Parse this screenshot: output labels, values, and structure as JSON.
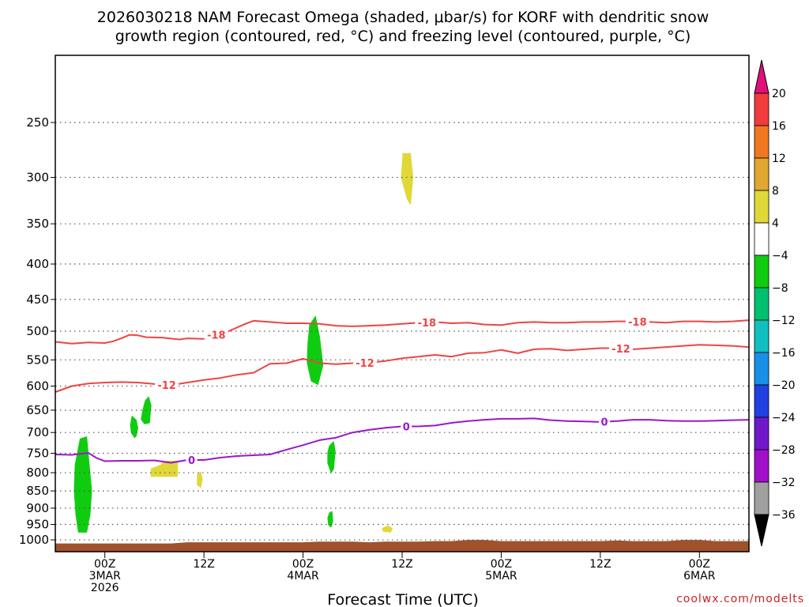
{
  "chart_data": {
    "type": "area",
    "title_lines": [
      "2026030218 NAM Forecast Omega (shaded, μbar/s) for KORF with dendritic snow",
      "growth region (contoured, red, °C) and freezing level (contoured, purple, °C)"
    ],
    "xlabel": "Forecast Time (UTC)",
    "credit": "coolwx.com/modelts",
    "x_range_hours": [
      -6,
      78
    ],
    "x_ticks": [
      {
        "hour": 0,
        "lines": [
          "00Z",
          "3MAR",
          "2026"
        ]
      },
      {
        "hour": 12,
        "lines": [
          "12Z"
        ]
      },
      {
        "hour": 24,
        "lines": [
          "00Z",
          "4MAR"
        ]
      },
      {
        "hour": 36,
        "lines": [
          "12Z"
        ]
      },
      {
        "hour": 48,
        "lines": [
          "00Z",
          "5MAR"
        ]
      },
      {
        "hour": 60,
        "lines": [
          "12Z"
        ]
      },
      {
        "hour": 72,
        "lines": [
          "00Z",
          "6MAR"
        ]
      }
    ],
    "y_ticks_hpa": [
      250,
      300,
      350,
      400,
      450,
      500,
      550,
      600,
      650,
      700,
      750,
      800,
      850,
      900,
      950,
      1000
    ],
    "y_range_hpa": [
      200,
      1040
    ],
    "colorbar": {
      "labels": [
        "20",
        "16",
        "12",
        "8",
        "4",
        "-4",
        "-8",
        "-12",
        "-16",
        "-20",
        "-24",
        "-28",
        "-32",
        "-36"
      ],
      "bands": [
        {
          "low": 16,
          "high": 20,
          "color": "#f03c3c"
        },
        {
          "low": 12,
          "high": 16,
          "color": "#f07820"
        },
        {
          "low": 8,
          "high": 12,
          "color": "#e0a830"
        },
        {
          "low": 4,
          "high": 8,
          "color": "#e0d838"
        },
        {
          "low": -4,
          "high": 4,
          "color": "#ffffff"
        },
        {
          "low": -8,
          "high": -4,
          "color": "#10cc10"
        },
        {
          "low": -12,
          "high": -8,
          "color": "#00c070"
        },
        {
          "low": -16,
          "high": -12,
          "color": "#10c0c0"
        },
        {
          "low": -20,
          "high": -16,
          "color": "#1890e8"
        },
        {
          "low": -24,
          "high": -20,
          "color": "#2040e0"
        },
        {
          "low": -28,
          "high": -24,
          "color": "#7018c8"
        },
        {
          "low": -32,
          "high": -28,
          "color": "#a010c8"
        },
        {
          "low": -36,
          "high": -32,
          "color": "#a0a0a0"
        }
      ],
      "over_color": "#e0107a",
      "under_color": "#000000"
    },
    "contours": [
      {
        "label": "-18",
        "color": "#ee4444",
        "label_hours": [
          13.5,
          39,
          64.5
        ],
        "points": [
          [
            -6,
            518
          ],
          [
            -4,
            521
          ],
          [
            -2,
            519
          ],
          [
            0,
            520
          ],
          [
            1,
            517
          ],
          [
            2,
            512
          ],
          [
            3,
            506
          ],
          [
            4,
            507
          ],
          [
            5,
            510
          ],
          [
            7,
            511
          ],
          [
            9,
            514
          ],
          [
            10,
            512
          ],
          [
            12,
            513
          ],
          [
            13,
            508
          ],
          [
            15,
            500
          ],
          [
            17,
            488
          ],
          [
            18,
            483
          ],
          [
            20,
            485
          ],
          [
            22,
            487
          ],
          [
            24,
            487
          ],
          [
            26,
            488
          ],
          [
            28,
            491
          ],
          [
            30,
            492
          ],
          [
            32,
            491
          ],
          [
            34,
            490
          ],
          [
            36,
            488
          ],
          [
            38,
            486
          ],
          [
            40,
            485
          ],
          [
            42,
            487
          ],
          [
            44,
            486
          ],
          [
            46,
            489
          ],
          [
            48,
            490
          ],
          [
            50,
            486
          ],
          [
            52,
            485
          ],
          [
            54,
            486
          ],
          [
            56,
            486
          ],
          [
            58,
            485
          ],
          [
            60,
            485
          ],
          [
            62,
            484
          ],
          [
            64,
            484
          ],
          [
            66,
            485
          ],
          [
            68,
            486
          ],
          [
            70,
            484
          ],
          [
            72,
            484
          ],
          [
            74,
            485
          ],
          [
            76,
            484
          ],
          [
            78,
            482
          ]
        ]
      },
      {
        "label": "-12",
        "color": "#ee4444",
        "label_hours": [
          7.5,
          31.5,
          62.5
        ],
        "points": [
          [
            -6,
            612
          ],
          [
            -4,
            600
          ],
          [
            -2,
            595
          ],
          [
            0,
            593
          ],
          [
            2,
            592
          ],
          [
            4,
            593
          ],
          [
            6,
            596
          ],
          [
            8,
            598
          ],
          [
            10,
            593
          ],
          [
            12,
            588
          ],
          [
            14,
            584
          ],
          [
            16,
            578
          ],
          [
            18,
            574
          ],
          [
            20,
            557
          ],
          [
            22,
            556
          ],
          [
            24,
            548
          ],
          [
            26,
            556
          ],
          [
            28,
            558
          ],
          [
            30,
            556
          ],
          [
            32,
            555
          ],
          [
            34,
            552
          ],
          [
            36,
            547
          ],
          [
            38,
            544
          ],
          [
            40,
            541
          ],
          [
            42,
            544
          ],
          [
            44,
            538
          ],
          [
            46,
            537
          ],
          [
            48,
            532
          ],
          [
            50,
            538
          ],
          [
            52,
            531
          ],
          [
            54,
            530
          ],
          [
            56,
            533
          ],
          [
            58,
            531
          ],
          [
            60,
            529
          ],
          [
            62,
            529
          ],
          [
            64,
            531
          ],
          [
            66,
            529
          ],
          [
            68,
            527
          ],
          [
            70,
            525
          ],
          [
            72,
            523
          ],
          [
            74,
            524
          ],
          [
            76,
            525
          ],
          [
            78,
            527
          ]
        ]
      },
      {
        "label": "0",
        "color": "#9a18c8",
        "label_hours": [
          10.5,
          36.5,
          60.5
        ],
        "points": [
          [
            -6,
            753
          ],
          [
            -4,
            754
          ],
          [
            -2,
            749
          ],
          [
            -1,
            762
          ],
          [
            0,
            770
          ],
          [
            2,
            769
          ],
          [
            4,
            769
          ],
          [
            6,
            768
          ],
          [
            8,
            774
          ],
          [
            10,
            767
          ],
          [
            12,
            767
          ],
          [
            14,
            761
          ],
          [
            16,
            757
          ],
          [
            18,
            755
          ],
          [
            20,
            753
          ],
          [
            22,
            741
          ],
          [
            24,
            730
          ],
          [
            26,
            718
          ],
          [
            28,
            712
          ],
          [
            30,
            700
          ],
          [
            32,
            694
          ],
          [
            34,
            689
          ],
          [
            36,
            686
          ],
          [
            38,
            686
          ],
          [
            40,
            684
          ],
          [
            42,
            678
          ],
          [
            44,
            674
          ],
          [
            46,
            671
          ],
          [
            48,
            669
          ],
          [
            50,
            669
          ],
          [
            52,
            668
          ],
          [
            54,
            672
          ],
          [
            56,
            674
          ],
          [
            58,
            675
          ],
          [
            60,
            676
          ],
          [
            62,
            674
          ],
          [
            64,
            671
          ],
          [
            66,
            671
          ],
          [
            68,
            673
          ],
          [
            70,
            674
          ],
          [
            72,
            674
          ],
          [
            74,
            673
          ],
          [
            76,
            672
          ],
          [
            78,
            671
          ]
        ]
      }
    ],
    "shaded_areas": [
      {
        "value": -6,
        "color": "#10cc10",
        "points": [
          [
            -3.0,
            715
          ],
          [
            -2.2,
            710
          ],
          [
            -2.0,
            755
          ],
          [
            -1.6,
            850
          ],
          [
            -1.8,
            920
          ],
          [
            -2.2,
            975
          ],
          [
            -3.2,
            975
          ],
          [
            -3.5,
            920
          ],
          [
            -3.7,
            850
          ],
          [
            -3.6,
            780
          ]
        ]
      },
      {
        "value": -6,
        "color": "#10cc10",
        "points": [
          [
            3.3,
            663
          ],
          [
            3.8,
            672
          ],
          [
            4.0,
            690
          ],
          [
            3.8,
            708
          ],
          [
            3.6,
            712
          ],
          [
            3.2,
            700
          ],
          [
            3.1,
            683
          ]
        ]
      },
      {
        "value": -6,
        "color": "#10cc10",
        "points": [
          [
            4.9,
            630
          ],
          [
            5.3,
            622
          ],
          [
            5.6,
            640
          ],
          [
            5.4,
            678
          ],
          [
            4.8,
            680
          ],
          [
            4.4,
            670
          ],
          [
            4.6,
            650
          ]
        ]
      },
      {
        "value": -6,
        "color": "#10cc10",
        "points": [
          [
            24.8,
            490
          ],
          [
            25.5,
            476
          ],
          [
            26.0,
            510
          ],
          [
            26.4,
            560
          ],
          [
            25.8,
            597
          ],
          [
            25.0,
            590
          ],
          [
            24.5,
            555
          ],
          [
            24.6,
            520
          ]
        ]
      },
      {
        "value": -6,
        "color": "#10cc10",
        "points": [
          [
            27.2,
            732
          ],
          [
            27.7,
            722
          ],
          [
            27.9,
            745
          ],
          [
            27.7,
            790
          ],
          [
            27.4,
            800
          ],
          [
            27.0,
            775
          ],
          [
            27.0,
            748
          ]
        ]
      },
      {
        "value": -6,
        "color": "#10cc10",
        "points": [
          [
            27.2,
            915
          ],
          [
            27.5,
            910
          ],
          [
            27.6,
            940
          ],
          [
            27.4,
            958
          ],
          [
            27.1,
            952
          ],
          [
            27.0,
            930
          ]
        ]
      },
      {
        "value": 6,
        "color": "#e0d838",
        "points": [
          [
            36.1,
            277
          ],
          [
            37.0,
            277
          ],
          [
            37.3,
            300
          ],
          [
            37.0,
            328
          ],
          [
            36.6,
            322
          ],
          [
            35.9,
            300
          ]
        ]
      },
      {
        "value": 6,
        "color": "#e0d838",
        "points": [
          [
            5.6,
            790
          ],
          [
            6.8,
            780
          ],
          [
            7.2,
            770
          ],
          [
            8.8,
            770
          ],
          [
            8.8,
            810
          ],
          [
            5.6,
            810
          ]
        ]
      },
      {
        "value": 6,
        "color": "#e0d838",
        "points": [
          [
            11.2,
            805
          ],
          [
            11.6,
            798
          ],
          [
            11.8,
            818
          ],
          [
            11.6,
            840
          ],
          [
            11.2,
            833
          ]
        ]
      },
      {
        "value": 6,
        "color": "#e0d838",
        "points": [
          [
            33.6,
            963
          ],
          [
            34.3,
            955
          ],
          [
            34.8,
            963
          ],
          [
            34.6,
            975
          ],
          [
            33.7,
            972
          ]
        ]
      }
    ],
    "terrain": {
      "color": "#a0522d",
      "points": [
        [
          -6,
          1012
        ],
        [
          -3,
          1012
        ],
        [
          0,
          1012
        ],
        [
          3,
          1012
        ],
        [
          6,
          1012
        ],
        [
          8,
          1012
        ],
        [
          10,
          1008
        ],
        [
          12,
          1008
        ],
        [
          14,
          1008
        ],
        [
          16,
          1008
        ],
        [
          18,
          1008
        ],
        [
          20,
          1008
        ],
        [
          22,
          1008
        ],
        [
          24,
          1008
        ],
        [
          26,
          1006
        ],
        [
          28,
          1006
        ],
        [
          30,
          1006
        ],
        [
          32,
          1008
        ],
        [
          34,
          1006
        ],
        [
          36,
          1006
        ],
        [
          38,
          1006
        ],
        [
          40,
          1004
        ],
        [
          42,
          1004
        ],
        [
          44,
          1000
        ],
        [
          46,
          1000
        ],
        [
          48,
          1004
        ],
        [
          50,
          1004
        ],
        [
          52,
          1004
        ],
        [
          54,
          1004
        ],
        [
          56,
          1004
        ],
        [
          58,
          1004
        ],
        [
          60,
          1004
        ],
        [
          62,
          1002
        ],
        [
          64,
          1004
        ],
        [
          66,
          1004
        ],
        [
          68,
          1004
        ],
        [
          70,
          1000
        ],
        [
          72,
          1000
        ],
        [
          74,
          1004
        ],
        [
          76,
          1004
        ],
        [
          78,
          1004
        ]
      ]
    }
  }
}
